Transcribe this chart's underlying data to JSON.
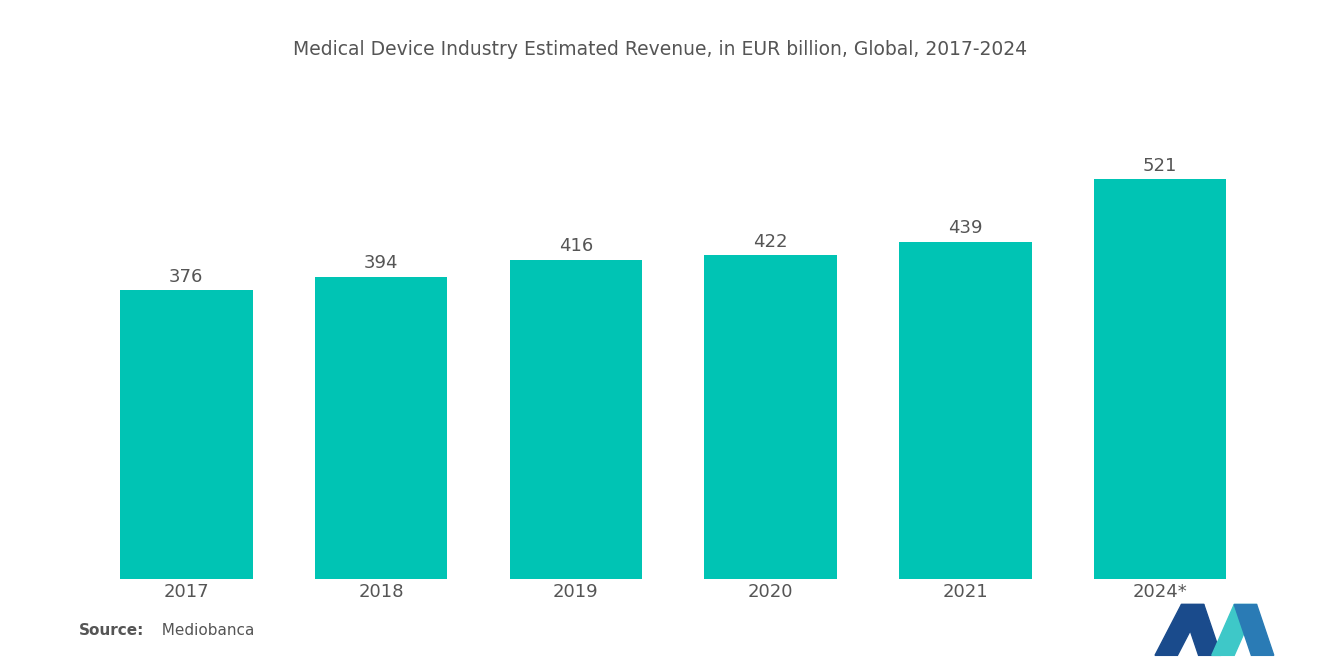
{
  "title": "Medical Device Industry Estimated Revenue, in EUR billion, Global, 2017-2024",
  "categories": [
    "2017",
    "2018",
    "2019",
    "2020",
    "2021",
    "2024*"
  ],
  "values": [
    376,
    394,
    416,
    422,
    439,
    521
  ],
  "bar_color": "#00C4B4",
  "background_color": "#ffffff",
  "title_fontsize": 13.5,
  "label_fontsize": 13,
  "tick_fontsize": 13,
  "source_bold": "Source:",
  "source_normal": "  Mediobanca",
  "ylim": [
    0,
    590
  ],
  "bar_width": 0.68,
  "logo_colors": {
    "left_dark": "#1a4b8c",
    "middle_teal": "#3ec8c8",
    "right_blue": "#2a7bb5"
  }
}
